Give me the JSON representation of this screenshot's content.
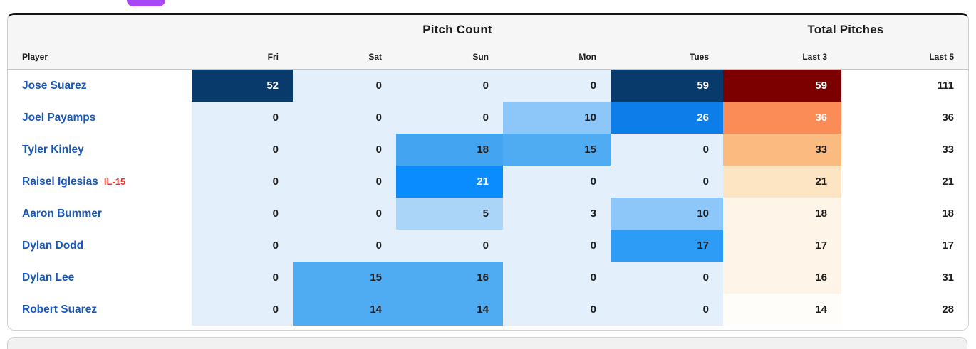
{
  "pill": {
    "color": "#a847f5"
  },
  "table": {
    "group_headers": [
      {
        "label": "Pitch Count"
      },
      {
        "label": "Total Pitches"
      }
    ],
    "columns": [
      "Player",
      "Fri",
      "Sat",
      "Sun",
      "Mon",
      "Tues",
      "Last 3",
      "Last 5"
    ],
    "colors": {
      "zero_blue": "#e3f0fc",
      "dark_navy": "#083a6b",
      "dark_red": "#7d0000",
      "header_bg": "#f6f6f7",
      "link_blue": "#1958b8",
      "il_red": "#ee3524"
    },
    "players": [
      {
        "name": "Jose Suarez",
        "tag": "",
        "cells": [
          {
            "v": "52",
            "bg": "#083a6b",
            "fg": "#ffffff"
          },
          {
            "v": "0",
            "bg": "#e3f0fc",
            "fg": "#1d1d1d"
          },
          {
            "v": "0",
            "bg": "#e3f0fc",
            "fg": "#1d1d1d"
          },
          {
            "v": "0",
            "bg": "#e3f0fc",
            "fg": "#1d1d1d"
          },
          {
            "v": "59",
            "bg": "#083a6b",
            "fg": "#ffffff"
          },
          {
            "v": "59",
            "bg": "#7d0000",
            "fg": "#ffffff"
          },
          {
            "v": "111",
            "bg": "#ffffff",
            "fg": "#1d1d1d"
          }
        ]
      },
      {
        "name": "Joel Payamps",
        "tag": "",
        "cells": [
          {
            "v": "0",
            "bg": "#e3f0fc",
            "fg": "#1d1d1d"
          },
          {
            "v": "0",
            "bg": "#e3f0fc",
            "fg": "#1d1d1d"
          },
          {
            "v": "0",
            "bg": "#e3f0fc",
            "fg": "#1d1d1d"
          },
          {
            "v": "10",
            "bg": "#8dc6f8",
            "fg": "#1d1d1d"
          },
          {
            "v": "26",
            "bg": "#0d7de9",
            "fg": "#ffffff"
          },
          {
            "v": "36",
            "bg": "#fb8c58",
            "fg": "#ffffff"
          },
          {
            "v": "36",
            "bg": "#ffffff",
            "fg": "#1d1d1d"
          }
        ]
      },
      {
        "name": "Tyler Kinley",
        "tag": "",
        "cells": [
          {
            "v": "0",
            "bg": "#e3f0fc",
            "fg": "#1d1d1d"
          },
          {
            "v": "0",
            "bg": "#e3f0fc",
            "fg": "#1d1d1d"
          },
          {
            "v": "18",
            "bg": "#43a4f2",
            "fg": "#1d1d1d"
          },
          {
            "v": "15",
            "bg": "#4fabf2",
            "fg": "#1d1d1d"
          },
          {
            "v": "0",
            "bg": "#e3f0fc",
            "fg": "#1d1d1d"
          },
          {
            "v": "33",
            "bg": "#fbbb80",
            "fg": "#1d1d1d"
          },
          {
            "v": "33",
            "bg": "#ffffff",
            "fg": "#1d1d1d"
          }
        ]
      },
      {
        "name": "Raisel Iglesias",
        "tag": "IL-15",
        "cells": [
          {
            "v": "0",
            "bg": "#e3f0fc",
            "fg": "#1d1d1d"
          },
          {
            "v": "0",
            "bg": "#e3f0fc",
            "fg": "#1d1d1d"
          },
          {
            "v": "21",
            "bg": "#0a8cff",
            "fg": "#ffffff"
          },
          {
            "v": "0",
            "bg": "#e3f0fc",
            "fg": "#1d1d1d"
          },
          {
            "v": "0",
            "bg": "#e3f0fc",
            "fg": "#1d1d1d"
          },
          {
            "v": "21",
            "bg": "#fde5c4",
            "fg": "#1d1d1d"
          },
          {
            "v": "21",
            "bg": "#ffffff",
            "fg": "#1d1d1d"
          }
        ]
      },
      {
        "name": "Aaron Bummer",
        "tag": "",
        "cells": [
          {
            "v": "0",
            "bg": "#e3f0fc",
            "fg": "#1d1d1d"
          },
          {
            "v": "0",
            "bg": "#e3f0fc",
            "fg": "#1d1d1d"
          },
          {
            "v": "5",
            "bg": "#abd5f8",
            "fg": "#1d1d1d"
          },
          {
            "v": "3",
            "bg": "#e3f0fc",
            "fg": "#1d1d1d"
          },
          {
            "v": "10",
            "bg": "#8dc6f8",
            "fg": "#1d1d1d"
          },
          {
            "v": "18",
            "bg": "#fef4e8",
            "fg": "#1d1d1d"
          },
          {
            "v": "18",
            "bg": "#ffffff",
            "fg": "#1d1d1d"
          }
        ]
      },
      {
        "name": "Dylan Dodd",
        "tag": "",
        "cells": [
          {
            "v": "0",
            "bg": "#e3f0fc",
            "fg": "#1d1d1d"
          },
          {
            "v": "0",
            "bg": "#e3f0fc",
            "fg": "#1d1d1d"
          },
          {
            "v": "0",
            "bg": "#e3f0fc",
            "fg": "#1d1d1d"
          },
          {
            "v": "0",
            "bg": "#e3f0fc",
            "fg": "#1d1d1d"
          },
          {
            "v": "17",
            "bg": "#2d9cf6",
            "fg": "#1d1d1d"
          },
          {
            "v": "17",
            "bg": "#fef4e8",
            "fg": "#1d1d1d"
          },
          {
            "v": "17",
            "bg": "#ffffff",
            "fg": "#1d1d1d"
          }
        ]
      },
      {
        "name": "Dylan Lee",
        "tag": "",
        "cells": [
          {
            "v": "0",
            "bg": "#e3f0fc",
            "fg": "#1d1d1d"
          },
          {
            "v": "15",
            "bg": "#4fabf2",
            "fg": "#1d1d1d"
          },
          {
            "v": "16",
            "bg": "#4fabf2",
            "fg": "#1d1d1d"
          },
          {
            "v": "0",
            "bg": "#e3f0fc",
            "fg": "#1d1d1d"
          },
          {
            "v": "0",
            "bg": "#e3f0fc",
            "fg": "#1d1d1d"
          },
          {
            "v": "16",
            "bg": "#fef4e8",
            "fg": "#1d1d1d"
          },
          {
            "v": "31",
            "bg": "#ffffff",
            "fg": "#1d1d1d"
          }
        ]
      },
      {
        "name": "Robert Suarez",
        "tag": "",
        "cells": [
          {
            "v": "0",
            "bg": "#e3f0fc",
            "fg": "#1d1d1d"
          },
          {
            "v": "14",
            "bg": "#4fabf2",
            "fg": "#1d1d1d"
          },
          {
            "v": "14",
            "bg": "#4fabf2",
            "fg": "#1d1d1d"
          },
          {
            "v": "0",
            "bg": "#e3f0fc",
            "fg": "#1d1d1d"
          },
          {
            "v": "0",
            "bg": "#e3f0fc",
            "fg": "#1d1d1d"
          },
          {
            "v": "14",
            "bg": "#fffdf9",
            "fg": "#1d1d1d"
          },
          {
            "v": "28",
            "bg": "#ffffff",
            "fg": "#1d1d1d"
          }
        ]
      }
    ]
  }
}
